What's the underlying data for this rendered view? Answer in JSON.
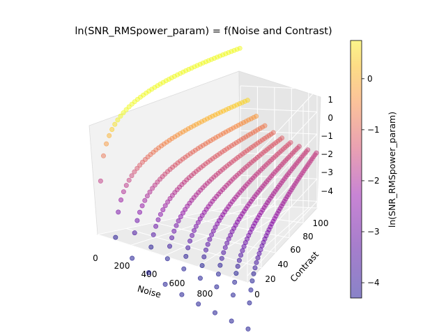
{
  "chart_data": {
    "type": "scatter",
    "title": "ln(SNR_RMSpower_param) = f(Noise and Contrast)",
    "xlabel": "Noise",
    "ylabel": "Contrast",
    "zlabel": "",
    "x_ticks": [
      "0",
      "200",
      "400",
      "600",
      "800"
    ],
    "y_ticks": [
      "0",
      "20",
      "40",
      "60",
      "80",
      "100"
    ],
    "z_ticks": [
      "1",
      "0",
      "−1",
      "−2",
      "−3",
      "−4"
    ],
    "xlim": [
      0,
      900
    ],
    "ylim": [
      0,
      100
    ],
    "zlim": [
      -4.3,
      1
    ],
    "colormap": "plasma",
    "alpha": 0.5,
    "noise_values": [
      10,
      100,
      200,
      300,
      400,
      500,
      600,
      700,
      800,
      900
    ],
    "contrast_values": [
      1,
      3,
      5,
      7,
      9,
      11,
      13,
      15,
      17,
      19,
      21,
      23,
      25,
      27,
      29,
      31,
      33,
      35,
      37,
      39,
      41,
      43,
      45,
      47,
      49,
      51,
      53,
      55,
      57,
      59,
      61,
      63,
      65,
      67,
      69,
      71,
      73,
      75,
      77,
      79,
      81,
      83,
      85,
      87,
      89,
      91,
      93,
      95,
      97,
      99
    ],
    "z_model": "ln(contrast / noise) + 0.4",
    "colorbar": {
      "label": "ln(SNR_RMSpower_param)",
      "ticks": [
        "0",
        "−1",
        "−2",
        "−3",
        "−4"
      ],
      "range": [
        -4.3,
        0.75
      ]
    }
  }
}
